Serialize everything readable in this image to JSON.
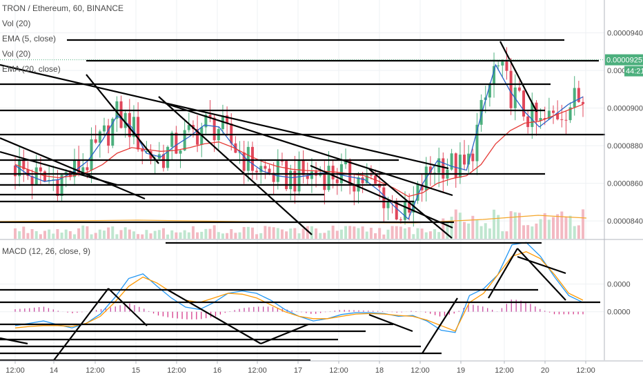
{
  "header": {
    "symbol_line": "TRON / Ethereum, 60, BINANCE",
    "indicators": [
      "Vol (20)",
      "EMA (5, close)",
      "Vol (20)",
      "EMA (20, close)"
    ],
    "macd_label": "MACD (12, 26, close, 9)"
  },
  "chart_data": [
    {
      "type": "line",
      "panel": "price",
      "title": "TRON / Ethereum, 60, BINANCE",
      "x_ticks": [
        "12:00",
        "14",
        "12:00",
        "15",
        "12:00",
        "16",
        "12:00",
        "17",
        "12:00",
        "18",
        "12:00",
        "19",
        "12:00",
        "20",
        "12:00"
      ],
      "y_ticks": [
        "0.00009400",
        "0.00009200",
        "0.00009000",
        "0.00008800",
        "0.00008600",
        "0.00008400"
      ],
      "y_tick_values": [
        9.4e-05,
        9.2e-05,
        9e-05,
        8.8e-05,
        8.6e-05,
        8.4e-05
      ],
      "ylim": [
        8.305e-05,
        9.575e-05
      ],
      "last_price": "0.00009257",
      "countdown": "44:21",
      "series": [
        {
          "name": "EMA (5, close)",
          "color": "#2962c8",
          "values": [
            8.695e-05,
            8.64e-05,
            8.61e-05,
            8.62e-05,
            8.66e-05,
            8.72e-05,
            8.83e-05,
            8.96e-05,
            8.9e-05,
            8.76e-05,
            8.74e-05,
            8.8e-05,
            8.85e-05,
            8.91e-05,
            8.9e-05,
            8.8e-05,
            8.72e-05,
            8.665e-05,
            8.64e-05,
            8.63e-05,
            8.64e-05,
            8.655e-05,
            8.65e-05,
            8.635e-05,
            8.62e-05,
            8.56e-05,
            8.48e-05,
            8.41e-05,
            8.6e-05,
            8.72e-05,
            8.69e-05,
            8.67e-05,
            8.96e-05,
            9.23e-05,
            9.09e-05,
            8.98e-05,
            8.9e-05,
            8.96e-05,
            9.02e-05,
            9.06e-05
          ]
        },
        {
          "name": "EMA (20, close)",
          "color": "#e53935",
          "values": [
            8.7e-05,
            8.67e-05,
            8.64e-05,
            8.63e-05,
            8.64e-05,
            8.66e-05,
            8.7e-05,
            8.76e-05,
            8.79e-05,
            8.78e-05,
            8.77e-05,
            8.775e-05,
            8.79e-05,
            8.81e-05,
            8.82e-05,
            8.79e-05,
            8.75e-05,
            8.715e-05,
            8.69e-05,
            8.675e-05,
            8.668e-05,
            8.665e-05,
            8.66e-05,
            8.65e-05,
            8.64e-05,
            8.61e-05,
            8.575e-05,
            8.53e-05,
            8.55e-05,
            8.6e-05,
            8.625e-05,
            8.64e-05,
            8.7e-05,
            8.81e-05,
            8.88e-05,
            8.92e-05,
            8.93e-05,
            8.96e-05,
            8.99e-05,
            9.02e-05
          ]
        }
      ]
    },
    {
      "type": "line",
      "panel": "macd",
      "title": "MACD (12, 26, close, 9)",
      "x_ticks": [
        "12:00",
        "14",
        "12:00",
        "15",
        "12:00",
        "16",
        "12:00",
        "17",
        "12:00",
        "18",
        "12:00",
        "19",
        "12:00",
        "20",
        "12:00"
      ],
      "y_ticks": [
        "0.0000",
        "0.0000"
      ],
      "y_tick_values": [
        0.6,
        0.0
      ],
      "ylim": [
        -1.05,
        1.55
      ],
      "series": [
        {
          "name": "MACD",
          "color": "#2196f3",
          "values": [
            -0.3,
            -0.25,
            -0.2,
            -0.28,
            -0.35,
            -0.25,
            -0.05,
            0.3,
            0.72,
            0.82,
            0.55,
            0.3,
            0.1,
            0.05,
            0.2,
            0.4,
            0.45,
            0.4,
            0.25,
            0.05,
            -0.1,
            -0.2,
            -0.15,
            -0.06,
            -0.02,
            -0.02,
            -0.04,
            -0.1,
            -0.08,
            -0.2,
            -0.4,
            -0.45,
            0.35,
            0.5,
            0.8,
            1.45,
            1.5,
            1.2,
            0.75,
            0.35,
            0.2
          ]
        },
        {
          "name": "Signal",
          "color": "#ff9800",
          "values": [
            -0.35,
            -0.32,
            -0.3,
            -0.3,
            -0.32,
            -0.25,
            -0.1,
            0.2,
            0.55,
            0.75,
            0.62,
            0.42,
            0.25,
            0.2,
            0.3,
            0.4,
            0.38,
            0.3,
            0.15,
            0.0,
            -0.1,
            -0.15,
            -0.15,
            -0.1,
            -0.05,
            -0.04,
            -0.05,
            -0.08,
            -0.1,
            -0.18,
            -0.3,
            -0.42,
            0.2,
            0.4,
            0.8,
            1.2,
            1.3,
            1.15,
            0.8,
            0.4,
            0.25
          ]
        }
      ]
    }
  ]
}
